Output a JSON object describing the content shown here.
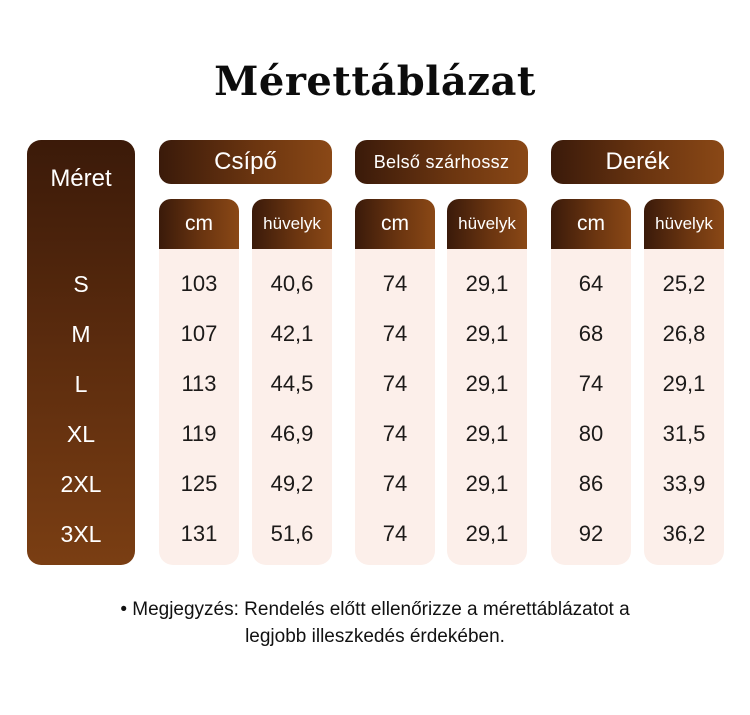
{
  "title": "Mérettáblázat",
  "size_header": "Méret",
  "groups": [
    {
      "label": "Csípő"
    },
    {
      "label": "Belső szárhossz"
    },
    {
      "label": "Derék"
    }
  ],
  "units": [
    "cm",
    "hüvelyk"
  ],
  "rows": [
    {
      "size": "S",
      "hip_cm": "103",
      "hip_in": "40,6",
      "inseam_cm": "74",
      "inseam_in": "29,1",
      "waist_cm": "64",
      "waist_in": "25,2"
    },
    {
      "size": "M",
      "hip_cm": "107",
      "hip_in": "42,1",
      "inseam_cm": "74",
      "inseam_in": "29,1",
      "waist_cm": "68",
      "waist_in": "26,8"
    },
    {
      "size": "L",
      "hip_cm": "113",
      "hip_in": "44,5",
      "inseam_cm": "74",
      "inseam_in": "29,1",
      "waist_cm": "74",
      "waist_in": "29,1"
    },
    {
      "size": "XL",
      "hip_cm": "119",
      "hip_in": "46,9",
      "inseam_cm": "74",
      "inseam_in": "29,1",
      "waist_cm": "80",
      "waist_in": "31,5"
    },
    {
      "size": "2XL",
      "hip_cm": "125",
      "hip_in": "49,2",
      "inseam_cm": "74",
      "inseam_in": "29,1",
      "waist_cm": "86",
      "waist_in": "33,9"
    },
    {
      "size": "3XL",
      "hip_cm": "131",
      "hip_in": "51,6",
      "inseam_cm": "74",
      "inseam_in": "29,1",
      "waist_cm": "92",
      "waist_in": "36,2"
    }
  ],
  "note_line1": "• Megjegyzés: Rendelés előtt ellenőrizze a mérettáblázatot a",
  "note_line2": "legjobb illeszkedés érdekében.",
  "colors": {
    "accent_dark": "#3a1a0a",
    "accent_light": "#8a4816",
    "cell_bg": "#fcefea"
  }
}
